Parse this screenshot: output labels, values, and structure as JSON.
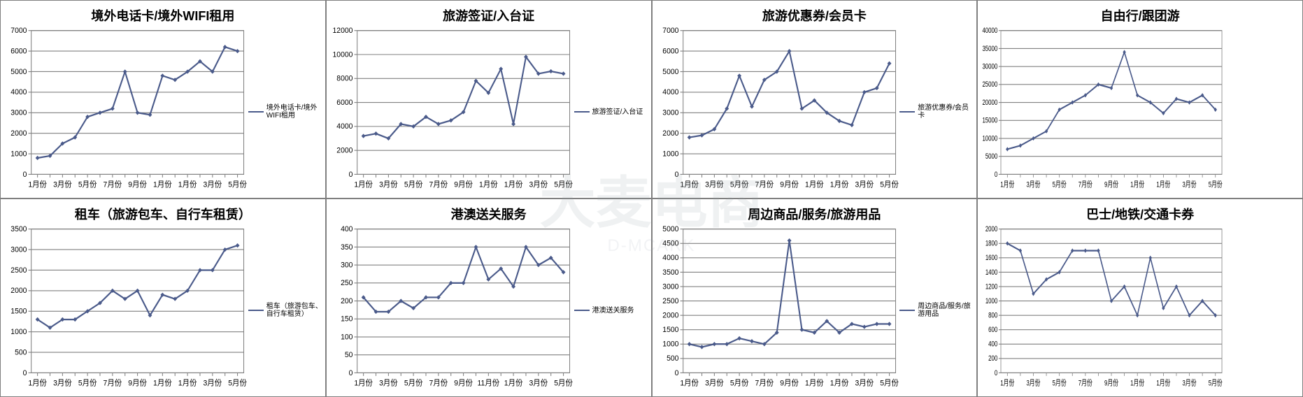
{
  "watermark": "大麦电商",
  "watermark_sub": "D-MCARK",
  "global": {
    "line_color": "#4a5a8a",
    "grid_color": "#c0c0c0",
    "border_color": "#808080",
    "axis_font_size": 10,
    "title_font_size": 18,
    "x_labels": [
      "1月份",
      "3月份",
      "5月份",
      "7月份",
      "9月份",
      "1月份",
      "1月份",
      "3月份",
      "5月份"
    ],
    "x_labels_alt": [
      "1月份",
      "3月份",
      "5月份",
      "7月份",
      "9月份",
      "11月份",
      "1月份",
      "3月份",
      "5月份"
    ],
    "n_points": 17
  },
  "charts": [
    {
      "title": "境外电话卡/境外WIFI租用",
      "legend": "境外电话卡/境外WIFI租用",
      "show_legend": true,
      "ylim": [
        0,
        7000
      ],
      "ytick_step": 1000,
      "values": [
        800,
        900,
        1500,
        1800,
        2800,
        3000,
        3200,
        5000,
        3000,
        2900,
        4800,
        4600,
        5000,
        5500,
        5000,
        6200,
        6000
      ]
    },
    {
      "title": "旅游签证/入台证",
      "legend": "旅游签证/入台证",
      "show_legend": true,
      "ylim": [
        0,
        12000
      ],
      "ytick_step": 2000,
      "values": [
        3200,
        3400,
        3000,
        4200,
        4000,
        4800,
        4200,
        4500,
        5200,
        7800,
        6800,
        8800,
        4200,
        9800,
        8400,
        8600,
        8400
      ]
    },
    {
      "title": "旅游优惠券/会员卡",
      "legend": "旅游优惠券/会员卡",
      "show_legend": true,
      "ylim": [
        0,
        7000
      ],
      "ytick_step": 1000,
      "values": [
        1800,
        1900,
        2200,
        3200,
        4800,
        3300,
        4600,
        5000,
        6000,
        3200,
        3600,
        3000,
        2600,
        2400,
        4000,
        4200,
        5400
      ]
    },
    {
      "title": "自由行/跟团游",
      "legend": "自由行/跟团游",
      "show_legend": false,
      "ylim": [
        0,
        40000
      ],
      "ytick_step": 5000,
      "values": [
        7000,
        8000,
        10000,
        12000,
        18000,
        20000,
        22000,
        25000,
        24000,
        34000,
        22000,
        20000,
        17000,
        21000,
        20000,
        22000,
        18000
      ]
    },
    {
      "title": "租车（旅游包车、自行车租赁）",
      "legend": "租车（旅游包车、自行车租赁）",
      "show_legend": true,
      "ylim": [
        0,
        3500
      ],
      "ytick_step": 500,
      "values": [
        1300,
        1100,
        1300,
        1300,
        1500,
        1700,
        2000,
        1800,
        2000,
        1400,
        1900,
        1800,
        2000,
        2500,
        2500,
        3000,
        3100
      ]
    },
    {
      "title": "港澳送关服务",
      "legend": "港澳送关服务",
      "show_legend": true,
      "ylim": [
        0,
        400
      ],
      "ytick_step": 50,
      "x_labels_key": "alt",
      "values": [
        210,
        170,
        170,
        200,
        180,
        210,
        210,
        250,
        250,
        350,
        260,
        290,
        240,
        350,
        300,
        320,
        280
      ]
    },
    {
      "title": "周边商品/服务/旅游用品",
      "legend": "周边商品/服务/旅游用品",
      "show_legend": true,
      "ylim": [
        0,
        5000
      ],
      "ytick_step": 500,
      "values": [
        1000,
        900,
        1000,
        1000,
        1200,
        1100,
        1000,
        1400,
        4600,
        1500,
        1400,
        1800,
        1400,
        1700,
        1600,
        1700,
        1700
      ]
    },
    {
      "title": "巴士/地铁/交通卡券",
      "legend": "巴士/地铁/交通卡券",
      "show_legend": false,
      "ylim": [
        0,
        2000
      ],
      "ytick_step": 200,
      "values": [
        1800,
        1700,
        1100,
        1300,
        1400,
        1700,
        1700,
        1700,
        1000,
        1200,
        800,
        1600,
        900,
        1200,
        800,
        1000,
        800
      ]
    }
  ]
}
